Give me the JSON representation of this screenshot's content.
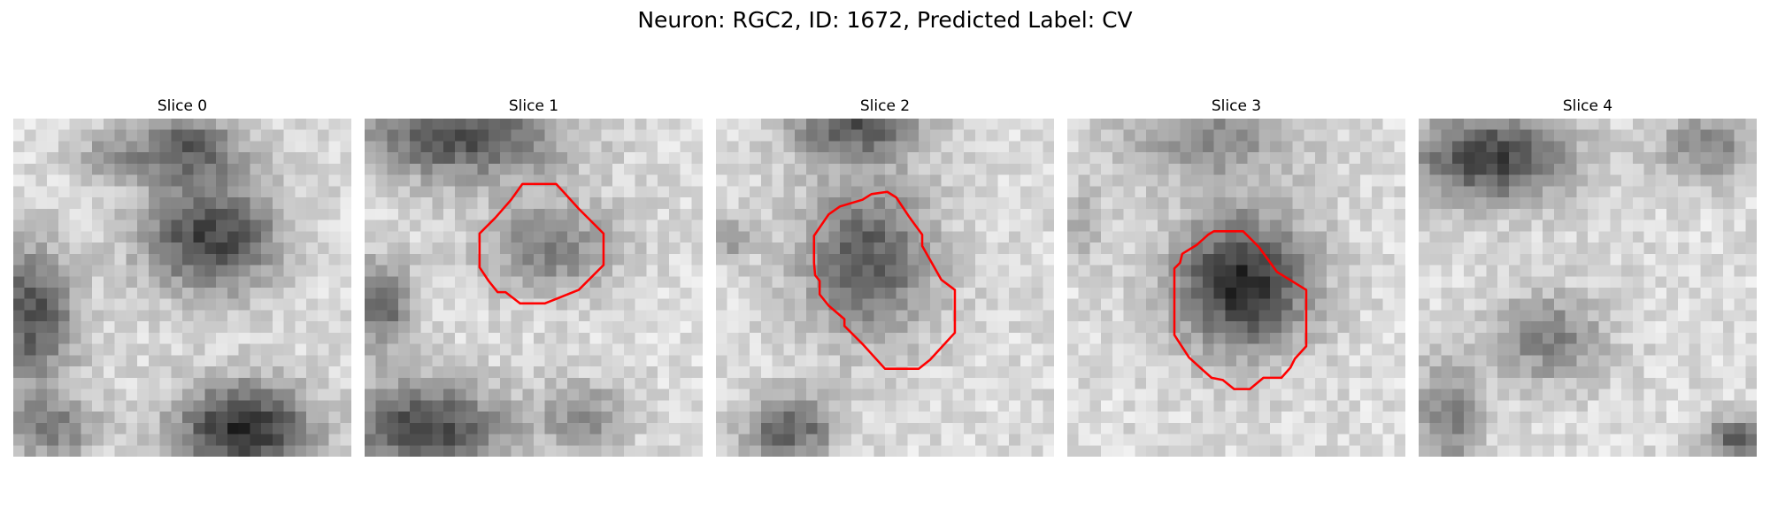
{
  "figure": {
    "title": "Neuron: RGC2, ID: 1672, Predicted Label: CV"
  },
  "panels": [
    {
      "title": "Slice 0",
      "has_contour": false
    },
    {
      "title": "Slice 1",
      "has_contour": true
    },
    {
      "title": "Slice 2",
      "has_contour": true
    },
    {
      "title": "Slice 3",
      "has_contour": true
    },
    {
      "title": "Slice 4",
      "has_contour": false
    }
  ],
  "colors": {
    "contour": "#ff0000",
    "background": "#ffffff"
  },
  "image": {
    "colormap": "grayscale",
    "description_type": "microscopy patch grid"
  }
}
